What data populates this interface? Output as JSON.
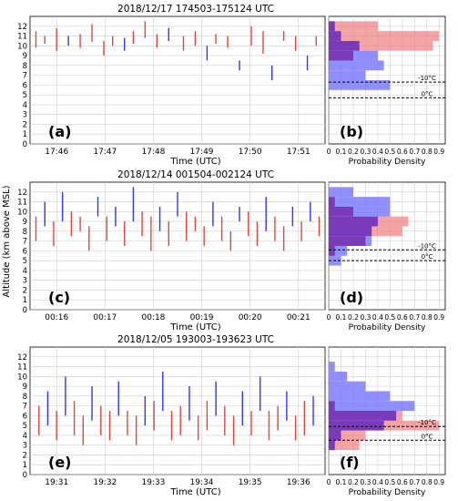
{
  "figure": {
    "ylabel": "Altitude (km above MSL)",
    "xlabel": "Time (UTC)",
    "hist_xlabel": "Probability Density",
    "hist_ticks": [
      "0",
      "0.1",
      "0.2",
      "0.3",
      "0.4",
      "0.5",
      "0.6",
      "0.7",
      "0.8",
      "0.9"
    ],
    "y_ticks": [
      "0",
      "1",
      "2",
      "3",
      "4",
      "5",
      "6",
      "7",
      "8",
      "9",
      "10",
      "11",
      "12"
    ],
    "colors": {
      "blue": "#3333ff",
      "red": "#e0473c",
      "orange": "#c87a4a",
      "hist_blue": "#7b7bff",
      "hist_red": "#f07d7d",
      "hist_overlap": "#6a2fbf",
      "hist_tan": "#c89a7a"
    }
  },
  "chart_data": [
    {
      "type": "scatter",
      "title": "2018/12/17 174503-175124 UTC",
      "panel_label": "(a)",
      "xlabel": "Time (UTC)",
      "ylabel": "Altitude (km above MSL)",
      "x_ticks": [
        "17:46",
        "17:47",
        "17:48",
        "17:49",
        "17:50",
        "17:51"
      ],
      "ylim": [
        0,
        13
      ],
      "cells": [
        {
          "t": 0.02,
          "y0": 9.8,
          "y1": 11.5,
          "c": "red"
        },
        {
          "t": 0.05,
          "y0": 10.2,
          "y1": 11.0,
          "c": "red"
        },
        {
          "t": 0.09,
          "y0": 9.5,
          "y1": 11.8,
          "c": "red"
        },
        {
          "t": 0.13,
          "y0": 10.0,
          "y1": 11.0,
          "c": "blue"
        },
        {
          "t": 0.17,
          "y0": 9.8,
          "y1": 11.2,
          "c": "red"
        },
        {
          "t": 0.21,
          "y0": 10.4,
          "y1": 12.2,
          "c": "red"
        },
        {
          "t": 0.25,
          "y0": 9.0,
          "y1": 10.5,
          "c": "red"
        },
        {
          "t": 0.28,
          "y0": 10.0,
          "y1": 11.0,
          "c": "red"
        },
        {
          "t": 0.32,
          "y0": 9.5,
          "y1": 10.8,
          "c": "blue"
        },
        {
          "t": 0.35,
          "y0": 10.2,
          "y1": 11.5,
          "c": "red"
        },
        {
          "t": 0.39,
          "y0": 10.8,
          "y1": 12.5,
          "c": "red"
        },
        {
          "t": 0.43,
          "y0": 9.8,
          "y1": 11.2,
          "c": "red"
        },
        {
          "t": 0.47,
          "y0": 10.5,
          "y1": 11.8,
          "c": "blue"
        },
        {
          "t": 0.52,
          "y0": 9.5,
          "y1": 11.0,
          "c": "red"
        },
        {
          "t": 0.56,
          "y0": 10.0,
          "y1": 11.5,
          "c": "red"
        },
        {
          "t": 0.6,
          "y0": 8.5,
          "y1": 10.0,
          "c": "blue"
        },
        {
          "t": 0.63,
          "y0": 10.2,
          "y1": 11.2,
          "c": "red"
        },
        {
          "t": 0.67,
          "y0": 9.8,
          "y1": 11.0,
          "c": "red"
        },
        {
          "t": 0.71,
          "y0": 7.5,
          "y1": 8.5,
          "c": "blue"
        },
        {
          "t": 0.75,
          "y0": 10.0,
          "y1": 12.0,
          "c": "red"
        },
        {
          "t": 0.79,
          "y0": 9.2,
          "y1": 11.5,
          "c": "red"
        },
        {
          "t": 0.82,
          "y0": 6.5,
          "y1": 8.0,
          "c": "blue"
        },
        {
          "t": 0.86,
          "y0": 10.5,
          "y1": 11.5,
          "c": "red"
        },
        {
          "t": 0.9,
          "y0": 9.5,
          "y1": 11.0,
          "c": "red"
        },
        {
          "t": 0.94,
          "y0": 7.5,
          "y1": 9.0,
          "c": "blue"
        },
        {
          "t": 0.97,
          "y0": 10.0,
          "y1": 11.0,
          "c": "red"
        }
      ],
      "histogram": {
        "bins": [
          [
            5.5,
            6.5
          ],
          [
            6.5,
            7.5
          ],
          [
            7.5,
            8.5
          ],
          [
            8.5,
            9.5
          ],
          [
            9.5,
            10.5
          ],
          [
            10.5,
            11.5
          ],
          [
            11.5,
            12.5
          ]
        ],
        "blue": [
          0.5,
          0.3,
          0.45,
          0.4,
          0.25,
          0.1,
          0.05
        ],
        "red": [
          0.0,
          0.0,
          0.0,
          0.2,
          0.85,
          0.9,
          0.4
        ]
      },
      "isotherms": [
        {
          "label": "-10°C",
          "y": 6.3
        },
        {
          "label": "0°C",
          "y": 4.7
        }
      ],
      "hist_panel_label": "(b)"
    },
    {
      "type": "scatter",
      "title": "2018/12/14 001504-002124 UTC",
      "panel_label": "(c)",
      "xlabel": "Time (UTC)",
      "ylabel": "Altitude (km above MSL)",
      "x_ticks": [
        "00:16",
        "00:17",
        "00:18",
        "00:19",
        "00:20",
        "00:21"
      ],
      "ylim": [
        0,
        13
      ],
      "cells": [
        {
          "t": 0.02,
          "y0": 7.0,
          "y1": 9.5,
          "c": "red"
        },
        {
          "t": 0.05,
          "y0": 8.5,
          "y1": 11.0,
          "c": "blue"
        },
        {
          "t": 0.08,
          "y0": 6.5,
          "y1": 9.0,
          "c": "red"
        },
        {
          "t": 0.11,
          "y0": 9.0,
          "y1": 12.0,
          "c": "blue"
        },
        {
          "t": 0.14,
          "y0": 7.5,
          "y1": 10.0,
          "c": "red"
        },
        {
          "t": 0.17,
          "y0": 8.0,
          "y1": 9.5,
          "c": "red"
        },
        {
          "t": 0.2,
          "y0": 6.0,
          "y1": 8.5,
          "c": "red"
        },
        {
          "t": 0.23,
          "y0": 9.5,
          "y1": 11.5,
          "c": "blue"
        },
        {
          "t": 0.26,
          "y0": 7.0,
          "y1": 9.5,
          "c": "red"
        },
        {
          "t": 0.29,
          "y0": 8.5,
          "y1": 10.5,
          "c": "blue"
        },
        {
          "t": 0.32,
          "y0": 6.5,
          "y1": 9.0,
          "c": "red"
        },
        {
          "t": 0.35,
          "y0": 9.0,
          "y1": 12.5,
          "c": "blue"
        },
        {
          "t": 0.38,
          "y0": 7.5,
          "y1": 10.0,
          "c": "red"
        },
        {
          "t": 0.41,
          "y0": 6.0,
          "y1": 9.5,
          "c": "red"
        },
        {
          "t": 0.44,
          "y0": 8.0,
          "y1": 10.5,
          "c": "blue"
        },
        {
          "t": 0.47,
          "y0": 6.5,
          "y1": 9.0,
          "c": "red"
        },
        {
          "t": 0.5,
          "y0": 9.5,
          "y1": 12.0,
          "c": "blue"
        },
        {
          "t": 0.53,
          "y0": 7.0,
          "y1": 10.0,
          "c": "red"
        },
        {
          "t": 0.56,
          "y0": 8.0,
          "y1": 9.5,
          "c": "red"
        },
        {
          "t": 0.59,
          "y0": 6.5,
          "y1": 8.5,
          "c": "red"
        },
        {
          "t": 0.62,
          "y0": 8.5,
          "y1": 11.0,
          "c": "blue"
        },
        {
          "t": 0.65,
          "y0": 7.0,
          "y1": 9.5,
          "c": "red"
        },
        {
          "t": 0.68,
          "y0": 6.0,
          "y1": 8.0,
          "c": "red"
        },
        {
          "t": 0.71,
          "y0": 9.0,
          "y1": 10.5,
          "c": "blue"
        },
        {
          "t": 0.74,
          "y0": 7.5,
          "y1": 10.0,
          "c": "red"
        },
        {
          "t": 0.77,
          "y0": 6.5,
          "y1": 9.0,
          "c": "red"
        },
        {
          "t": 0.8,
          "y0": 8.0,
          "y1": 11.5,
          "c": "blue"
        },
        {
          "t": 0.83,
          "y0": 7.0,
          "y1": 9.5,
          "c": "red"
        },
        {
          "t": 0.86,
          "y0": 6.0,
          "y1": 8.5,
          "c": "red"
        },
        {
          "t": 0.89,
          "y0": 8.5,
          "y1": 10.5,
          "c": "blue"
        },
        {
          "t": 0.92,
          "y0": 7.0,
          "y1": 9.0,
          "c": "red"
        },
        {
          "t": 0.95,
          "y0": 9.0,
          "y1": 11.0,
          "c": "blue"
        },
        {
          "t": 0.98,
          "y0": 7.5,
          "y1": 9.5,
          "c": "red"
        }
      ],
      "histogram": {
        "bins": [
          [
            4.5,
            5.5
          ],
          [
            5.5,
            6.5
          ],
          [
            6.5,
            7.5
          ],
          [
            7.5,
            8.5
          ],
          [
            8.5,
            9.5
          ],
          [
            9.5,
            10.5
          ],
          [
            10.5,
            11.5
          ],
          [
            11.5,
            12.5
          ]
        ],
        "blue": [
          0.1,
          0.15,
          0.35,
          0.35,
          0.4,
          0.5,
          0.5,
          0.2
        ],
        "red": [
          0.0,
          0.05,
          0.3,
          0.6,
          0.65,
          0.2,
          0.05,
          0.0
        ]
      },
      "isotherms": [
        {
          "label": "-10°C",
          "y": 6.1
        },
        {
          "label": "0°C",
          "y": 5.0
        }
      ],
      "hist_panel_label": "(d)"
    },
    {
      "type": "scatter",
      "title": "2018/12/05 193003-193623 UTC",
      "panel_label": "(e)",
      "xlabel": "Time (UTC)",
      "ylabel": "Altitude (km above MSL)",
      "x_ticks": [
        "19:31",
        "19:32",
        "19:33",
        "19:34",
        "19:35",
        "19:36"
      ],
      "ylim": [
        0,
        13
      ],
      "cells": [
        {
          "t": 0.03,
          "y0": 4.0,
          "y1": 7.0,
          "c": "red"
        },
        {
          "t": 0.06,
          "y0": 5.0,
          "y1": 8.5,
          "c": "blue"
        },
        {
          "t": 0.09,
          "y0": 3.5,
          "y1": 6.5,
          "c": "red"
        },
        {
          "t": 0.12,
          "y0": 6.0,
          "y1": 10.0,
          "c": "blue"
        },
        {
          "t": 0.15,
          "y0": 4.0,
          "y1": 7.5,
          "c": "red"
        },
        {
          "t": 0.18,
          "y0": 3.0,
          "y1": 6.0,
          "c": "red"
        },
        {
          "t": 0.21,
          "y0": 5.5,
          "y1": 9.0,
          "c": "blue"
        },
        {
          "t": 0.24,
          "y0": 4.0,
          "y1": 7.0,
          "c": "red"
        },
        {
          "t": 0.27,
          "y0": 3.5,
          "y1": 6.5,
          "c": "red"
        },
        {
          "t": 0.3,
          "y0": 6.0,
          "y1": 9.5,
          "c": "blue"
        },
        {
          "t": 0.33,
          "y0": 4.0,
          "y1": 6.5,
          "c": "red"
        },
        {
          "t": 0.36,
          "y0": 3.0,
          "y1": 6.0,
          "c": "red"
        },
        {
          "t": 0.39,
          "y0": 5.0,
          "y1": 8.0,
          "c": "blue"
        },
        {
          "t": 0.42,
          "y0": 4.5,
          "y1": 7.5,
          "c": "red"
        },
        {
          "t": 0.45,
          "y0": 6.5,
          "y1": 10.5,
          "c": "blue"
        },
        {
          "t": 0.48,
          "y0": 3.5,
          "y1": 6.5,
          "c": "red"
        },
        {
          "t": 0.51,
          "y0": 4.0,
          "y1": 7.0,
          "c": "red"
        },
        {
          "t": 0.54,
          "y0": 5.5,
          "y1": 9.0,
          "c": "blue"
        },
        {
          "t": 0.57,
          "y0": 3.5,
          "y1": 6.0,
          "c": "red"
        },
        {
          "t": 0.6,
          "y0": 4.5,
          "y1": 7.5,
          "c": "red"
        },
        {
          "t": 0.63,
          "y0": 6.0,
          "y1": 9.5,
          "c": "blue"
        },
        {
          "t": 0.66,
          "y0": 4.0,
          "y1": 7.0,
          "c": "red"
        },
        {
          "t": 0.69,
          "y0": 3.0,
          "y1": 6.0,
          "c": "red"
        },
        {
          "t": 0.72,
          "y0": 5.0,
          "y1": 8.5,
          "c": "blue"
        },
        {
          "t": 0.75,
          "y0": 4.0,
          "y1": 6.5,
          "c": "red"
        },
        {
          "t": 0.78,
          "y0": 6.5,
          "y1": 10.0,
          "c": "blue"
        },
        {
          "t": 0.81,
          "y0": 3.5,
          "y1": 6.5,
          "c": "red"
        },
        {
          "t": 0.84,
          "y0": 4.5,
          "y1": 7.0,
          "c": "red"
        },
        {
          "t": 0.87,
          "y0": 5.5,
          "y1": 8.5,
          "c": "blue"
        },
        {
          "t": 0.9,
          "y0": 3.5,
          "y1": 6.0,
          "c": "red"
        },
        {
          "t": 0.93,
          "y0": 4.0,
          "y1": 7.5,
          "c": "red"
        },
        {
          "t": 0.96,
          "y0": 5.0,
          "y1": 8.0,
          "c": "blue"
        }
      ],
      "histogram": {
        "bins": [
          [
            2.5,
            3.5
          ],
          [
            3.5,
            4.5
          ],
          [
            4.5,
            5.5
          ],
          [
            5.5,
            6.5
          ],
          [
            6.5,
            7.5
          ],
          [
            7.5,
            8.5
          ],
          [
            8.5,
            9.5
          ],
          [
            9.5,
            10.5
          ],
          [
            10.5,
            11.5
          ]
        ],
        "blue": [
          0.05,
          0.1,
          0.45,
          0.55,
          0.7,
          0.5,
          0.3,
          0.15,
          0.05
        ],
        "red": [
          0.25,
          0.3,
          0.9,
          0.6,
          0.05,
          0.0,
          0.0,
          0.0,
          0.0
        ]
      },
      "isotherms": [
        {
          "label": "-10°C",
          "y": 4.9
        },
        {
          "label": "0°C",
          "y": 3.5
        }
      ],
      "hist_panel_label": "(f)"
    }
  ]
}
